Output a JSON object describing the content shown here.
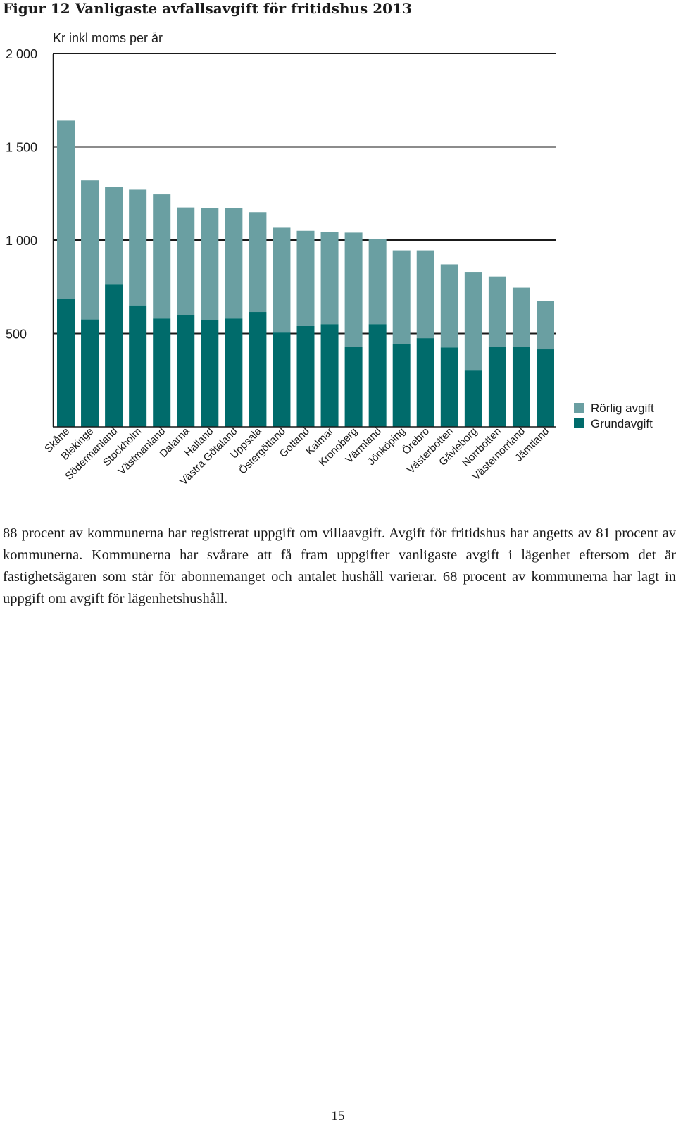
{
  "figure": {
    "title": "Figur 12 Vanligaste avfallsavgift för fritidshus 2013"
  },
  "chart_data": {
    "type": "bar",
    "stacked": true,
    "ylabel": "Kr inkl moms per år",
    "ylim": [
      0,
      2000
    ],
    "yticks": [
      500,
      1000,
      1500,
      2000
    ],
    "ytick_labels": [
      "500",
      "1 000",
      "1 500",
      "2 000"
    ],
    "grid": true,
    "legend_position": "right",
    "categories": [
      "Skåne",
      "Blekinge",
      "Södermanland",
      "Stockholm",
      "Västmanland",
      "Dalarna",
      "Halland",
      "Västra Götaland",
      "Uppsala",
      "Östergötland",
      "Gotland",
      "Kalmar",
      "Kronoberg",
      "Värmland",
      "Jönköping",
      "Örebro",
      "Västerbotten",
      "Gävleborg",
      "Norrbotten",
      "Västernorrland",
      "Jämtland"
    ],
    "series": [
      {
        "name": "Grundavgift",
        "color": "#006b6b",
        "values": [
          685,
          575,
          765,
          650,
          580,
          600,
          570,
          580,
          615,
          505,
          540,
          550,
          430,
          550,
          445,
          475,
          425,
          305,
          430,
          430,
          415
        ]
      },
      {
        "name": "Rörlig avgift",
        "color": "#6a9fa2",
        "values": [
          955,
          745,
          520,
          620,
          665,
          575,
          600,
          590,
          535,
          565,
          510,
          495,
          610,
          455,
          500,
          470,
          445,
          525,
          375,
          315,
          260
        ]
      }
    ]
  },
  "paragraph": "88 procent av kommunerna har registrerat uppgift om villaavgift. Avgift för fritidshus har angetts av 81 procent av kommunerna. Kommunerna har svårare att få fram uppgifter vanligaste avgift i lägenhet eftersom det är fastighetsägaren som står för abonnemanget och antalet hushåll varierar. 68 procent av kommunerna har lagt in uppgift om avgift för lägenhetshushåll.",
  "page_number": "15"
}
